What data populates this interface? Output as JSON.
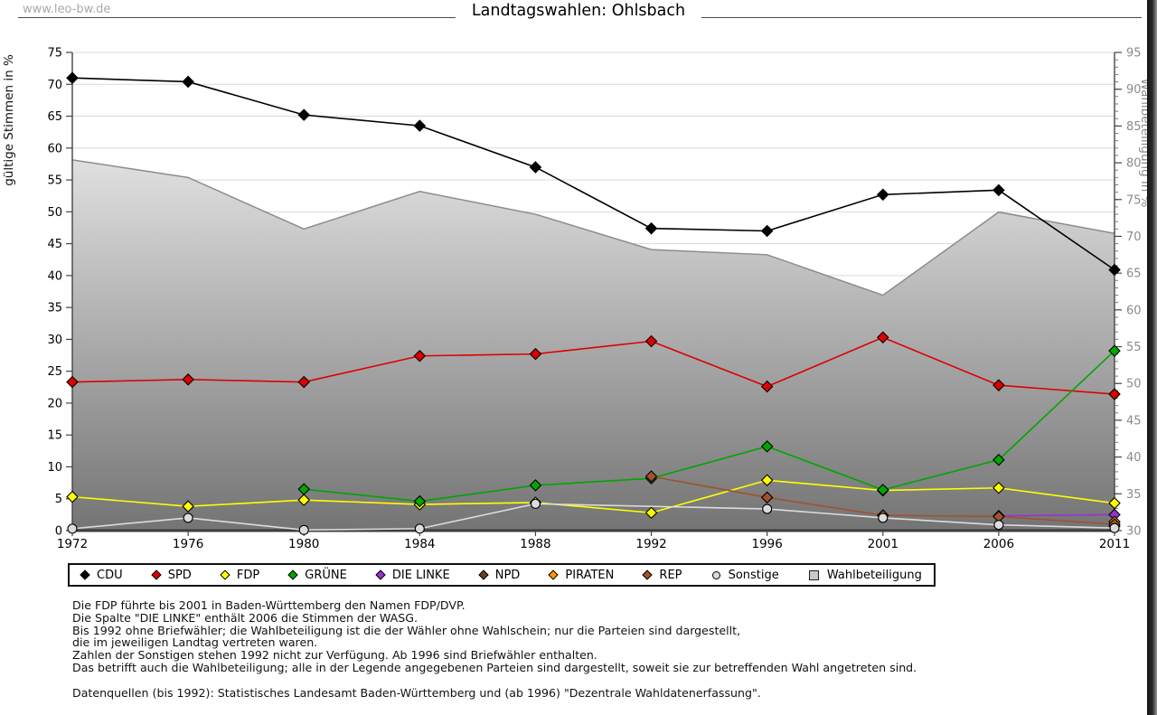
{
  "watermark": "www.leo-bw.de",
  "title": "Landtagswahlen: Ohlsbach",
  "source": "Datenquellen (bis 1992): Statistisches Landesamt Baden-Württemberg und (ab 1996) \"Dezentrale Wahldatenerfassung\".",
  "footnotes": [
    "Die FDP führte bis 2001 in Baden-Württemberg den Namen FDP/DVP.",
    "Die Spalte \"DIE LINKE\" enthält 2006 die Stimmen der WASG.",
    "Bis 1992 ohne Briefwähler; die Wahlbeteiligung ist die der Wähler ohne Wahlschein; nur die Parteien sind dargestellt,",
    "die im jeweiligen Landtag vertreten waren.",
    "Zahlen der Sonstigen stehen 1992 nicht zur Verfügung. Ab 1996 sind Briefwähler enthalten.",
    "Das betrifft auch die Wahlbeteiligung; alle in der Legende angegebenen Parteien sind dargestellt, soweit sie zur betreffenden Wahl angetreten sind."
  ],
  "chart_data": {
    "type": "line",
    "title": "Landtagswahlen: Ohlsbach",
    "categories": [
      "1972",
      "1976",
      "1980",
      "1984",
      "1988",
      "1992",
      "1996",
      "2001",
      "2006",
      "2011"
    ],
    "left_axis": {
      "label": "gültige Stimmen in %",
      "min": 0,
      "max": 75,
      "tick_step": 5
    },
    "right_axis": {
      "label": "Wahlbeteiligung in %",
      "min": 30,
      "max": 95,
      "tick_step": 5,
      "minor_tick_step": 1
    },
    "grid": true,
    "legend_position": "bottom",
    "area_gradient": {
      "top": "#ffffff",
      "bottom": "#747474",
      "outline": "#8c8c8c"
    },
    "grid_color": "#d9d9d9",
    "series": [
      {
        "name": "CDU",
        "color": "#000000",
        "marker": "diamond",
        "axis": "left",
        "values": [
          71.0,
          70.4,
          65.2,
          63.5,
          57.0,
          47.4,
          47.0,
          52.7,
          53.4,
          40.9
        ]
      },
      {
        "name": "SPD",
        "color": "#dd0000",
        "marker": "diamond",
        "axis": "left",
        "values": [
          23.3,
          23.7,
          23.3,
          27.4,
          27.7,
          29.7,
          22.6,
          30.3,
          22.8,
          21.4
        ]
      },
      {
        "name": "FDP",
        "color": "#ffff00",
        "marker": "diamond",
        "axis": "left",
        "values": [
          5.3,
          3.8,
          4.8,
          4.1,
          4.4,
          2.8,
          7.9,
          6.3,
          6.7,
          4.3
        ]
      },
      {
        "name": "GRÜNE",
        "color": "#00a500",
        "marker": "diamond",
        "axis": "left",
        "values": [
          null,
          null,
          6.5,
          4.6,
          7.1,
          8.2,
          13.2,
          6.4,
          11.1,
          28.2
        ]
      },
      {
        "name": "DIE LINKE",
        "color": "#9932cc",
        "marker": "diamond",
        "axis": "left",
        "values": [
          null,
          null,
          null,
          null,
          null,
          null,
          null,
          null,
          2.3,
          2.5
        ]
      },
      {
        "name": "NPD",
        "color": "#654321",
        "marker": "diamond",
        "axis": "left",
        "values": [
          null,
          null,
          null,
          null,
          null,
          null,
          null,
          null,
          null,
          0.7
        ]
      },
      {
        "name": "PIRATEN",
        "color": "#ff9900",
        "marker": "diamond",
        "axis": "left",
        "values": [
          null,
          null,
          null,
          null,
          null,
          null,
          null,
          null,
          null,
          1.4
        ]
      },
      {
        "name": "REP",
        "color": "#a0522d",
        "marker": "diamond",
        "axis": "left",
        "values": [
          null,
          null,
          null,
          null,
          null,
          8.5,
          5.2,
          2.4,
          2.2,
          1.0
        ]
      },
      {
        "name": "Sonstige",
        "color": "#dcdcdc",
        "marker": "circle",
        "axis": "left",
        "values": [
          0.3,
          2.0,
          0.1,
          0.3,
          4.2,
          null,
          3.4,
          2.0,
          0.9,
          0.4
        ]
      },
      {
        "name": "Wahlbeteiligung",
        "color": "#c9c9c9",
        "marker": "square",
        "axis": "right",
        "type": "area",
        "values": [
          80.4,
          78.0,
          71.0,
          76.1,
          73.0,
          68.2,
          67.5,
          62.0,
          73.3,
          70.4
        ]
      }
    ]
  }
}
